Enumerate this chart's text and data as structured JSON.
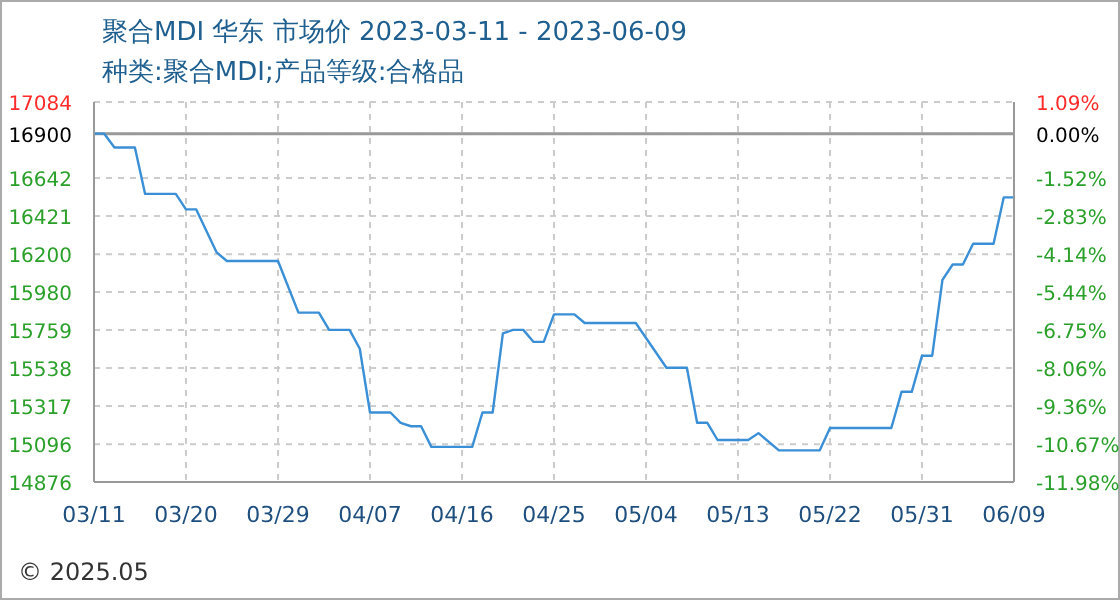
{
  "chart_data": {
    "type": "line",
    "title": "聚合MDI 华东 市场价 2023-03-11 - 2023-06-09",
    "subtitle": "种类:聚合MDI;产品等级:合格品",
    "annotations": [
      "© 2025.05"
    ],
    "x": [
      "2023-03-11",
      "2023-03-12",
      "2023-03-13",
      "2023-03-15",
      "2023-03-16",
      "2023-03-19",
      "2023-03-20",
      "2023-03-21",
      "2023-03-23",
      "2023-03-24",
      "2023-03-29",
      "2023-03-31",
      "2023-04-02",
      "2023-04-03",
      "2023-04-05",
      "2023-04-06",
      "2023-04-07",
      "2023-04-09",
      "2023-04-10",
      "2023-04-11",
      "2023-04-12",
      "2023-04-13",
      "2023-04-17",
      "2023-04-18",
      "2023-04-19",
      "2023-04-20",
      "2023-04-21",
      "2023-04-22",
      "2023-04-23",
      "2023-04-24",
      "2023-04-25",
      "2023-04-27",
      "2023-04-28",
      "2023-05-03",
      "2023-05-06",
      "2023-05-08",
      "2023-05-09",
      "2023-05-10",
      "2023-05-11",
      "2023-05-14",
      "2023-05-15",
      "2023-05-17",
      "2023-05-21",
      "2023-05-22",
      "2023-05-28",
      "2023-05-29",
      "2023-05-30",
      "2023-05-31",
      "2023-06-01",
      "2023-06-02",
      "2023-06-03",
      "2023-06-04",
      "2023-06-05",
      "2023-06-07",
      "2023-06-08",
      "2023-06-09"
    ],
    "series": [
      {
        "color": "#3a8fd6",
        "values": [
          16900,
          16900,
          16820,
          16820,
          16550,
          16550,
          16460,
          16460,
          16210,
          16160,
          16160,
          15860,
          15860,
          15760,
          15760,
          15650,
          15280,
          15280,
          15220,
          15200,
          15200,
          15080,
          15080,
          15280,
          15280,
          15740,
          15760,
          15760,
          15690,
          15690,
          15850,
          15850,
          15800,
          15800,
          15540,
          15540,
          15220,
          15220,
          15120,
          15120,
          15160,
          15060,
          15060,
          15190,
          15190,
          15400,
          15400,
          15610,
          15610,
          16050,
          16140,
          16140,
          16260,
          16260,
          16530,
          16530
        ]
      }
    ],
    "xlim": [
      "2023-03-11",
      "2023-06-09"
    ],
    "xticks": [
      {
        "value": "2023-03-11",
        "label": "03/11"
      },
      {
        "value": "2023-03-20",
        "label": "03/20"
      },
      {
        "value": "2023-03-29",
        "label": "03/29"
      },
      {
        "value": "2023-04-07",
        "label": "04/07"
      },
      {
        "value": "2023-04-16",
        "label": "04/16"
      },
      {
        "value": "2023-04-25",
        "label": "04/25"
      },
      {
        "value": "2023-05-04",
        "label": "05/04"
      },
      {
        "value": "2023-05-13",
        "label": "05/13"
      },
      {
        "value": "2023-05-22",
        "label": "05/22"
      },
      {
        "value": "2023-05-31",
        "label": "05/31"
      },
      {
        "value": "2023-06-09",
        "label": "06/09"
      }
    ],
    "ylim": [
      14876,
      17084
    ],
    "yticks": [
      14876,
      15096,
      15317,
      15538,
      15759,
      15980,
      16200,
      16421,
      16642,
      16900,
      17084
    ],
    "y2lim": [
      -11.98,
      1.09
    ],
    "y2ticks": [
      {
        "value": -11.98,
        "label": "-11.98%"
      },
      {
        "value": -10.67,
        "label": "-10.67%"
      },
      {
        "value": -9.36,
        "label": "-9.36%"
      },
      {
        "value": -8.06,
        "label": "-8.06%"
      },
      {
        "value": -6.75,
        "label": "-6.75%"
      },
      {
        "value": -5.44,
        "label": "-5.44%"
      },
      {
        "value": -4.14,
        "label": "-4.14%"
      },
      {
        "value": -2.83,
        "label": "-2.83%"
      },
      {
        "value": -1.52,
        "label": "-1.52%"
      },
      {
        "value": 0,
        "label": "0.00%"
      },
      {
        "value": 1.09,
        "label": "1.09%"
      }
    ],
    "ref_lines": [
      {
        "axis": "y",
        "value": 16900,
        "color": "#999999"
      }
    ],
    "grid": true
  }
}
